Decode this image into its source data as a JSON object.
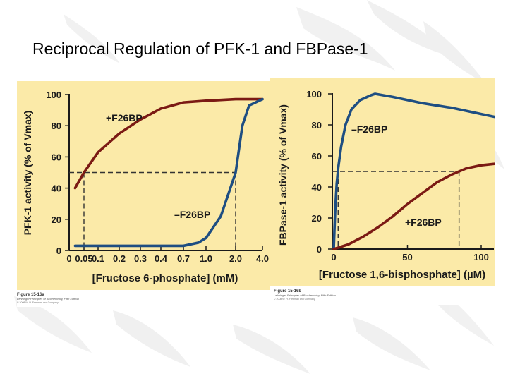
{
  "slide": {
    "title": "Reciprocal Regulation of PFK-1 and FBPase-1"
  },
  "theme": {
    "panel_color": "#fbeaa8",
    "axis_color": "#1a1a1a",
    "plus_curve_color": "#7b1a14",
    "minus_curve_color": "#1e4e82",
    "guide_color": "#333333"
  },
  "chart_data": [
    {
      "type": "line",
      "figure_label": "Figure 15-16a",
      "figure_source": "Lehninger Principles of Biochemistry, Fifth Edition",
      "figure_copyright": "© 2008 W. H. Freeman and Company",
      "xlabel": "[Fructose 6-phosphate] (mM)",
      "ylabel": "PFK-1 activity (% of Vmax)",
      "x_tick_labels": [
        "0",
        "0.05",
        "0.1",
        "0.2",
        "0.3",
        "0.4",
        "0.7",
        "1.0",
        "2.0",
        "4.0"
      ],
      "y_ticks": [
        0,
        20,
        40,
        60,
        80,
        100
      ],
      "ylim": [
        0,
        100
      ],
      "x_scale": "nonlinear (ticks as labeled)",
      "grid": false,
      "reference_line": {
        "y": 50,
        "x_plus": 0.05,
        "x_minus": 2.0
      },
      "series": [
        {
          "name": "+F26BP",
          "x": [
            0.02,
            0.05,
            0.1,
            0.2,
            0.3,
            0.4,
            0.7,
            1.0,
            2.0,
            3.0,
            4.0
          ],
          "y": [
            40,
            50,
            63,
            75,
            84,
            91,
            95,
            96,
            97,
            97,
            97
          ]
        },
        {
          "name": "–F26BP",
          "x": [
            0.02,
            0.1,
            0.2,
            0.4,
            0.7,
            0.9,
            1.0,
            1.5,
            2.0,
            2.5,
            3.0,
            4.0
          ],
          "y": [
            3,
            3,
            3,
            3,
            3,
            5,
            8,
            22,
            50,
            80,
            93,
            97
          ]
        }
      ]
    },
    {
      "type": "line",
      "figure_label": "Figure 15-16b",
      "figure_source": "Lehninger Principles of Biochemistry, Fifth Edition",
      "figure_copyright": "© 2008 W. H. Freeman and Company",
      "xlabel": "[Fructose 1,6-bisphosphate] (µM)",
      "ylabel": "FBPase-1 activity (% of Vmax)",
      "x_ticks": [
        0,
        50,
        100
      ],
      "y_ticks": [
        0,
        20,
        40,
        60,
        80,
        100
      ],
      "xlim": [
        0,
        110
      ],
      "ylim": [
        0,
        100
      ],
      "grid": false,
      "reference_line": {
        "y": 50,
        "x_minus": 3,
        "x_plus": 85
      },
      "series": [
        {
          "name": "–F26BP",
          "x": [
            0,
            1,
            2,
            3,
            5,
            8,
            12,
            18,
            25,
            28,
            40,
            60,
            80,
            100,
            110
          ],
          "y": [
            0,
            25,
            42,
            52,
            66,
            80,
            90,
            96,
            99,
            100,
            98,
            94,
            91,
            87,
            85
          ]
        },
        {
          "name": "+F26BP",
          "x": [
            0,
            10,
            20,
            30,
            40,
            50,
            60,
            70,
            80,
            85,
            90,
            100,
            110
          ],
          "y": [
            0,
            3,
            8,
            14,
            21,
            29,
            36,
            43,
            48,
            50,
            52,
            54,
            55
          ]
        }
      ]
    }
  ]
}
